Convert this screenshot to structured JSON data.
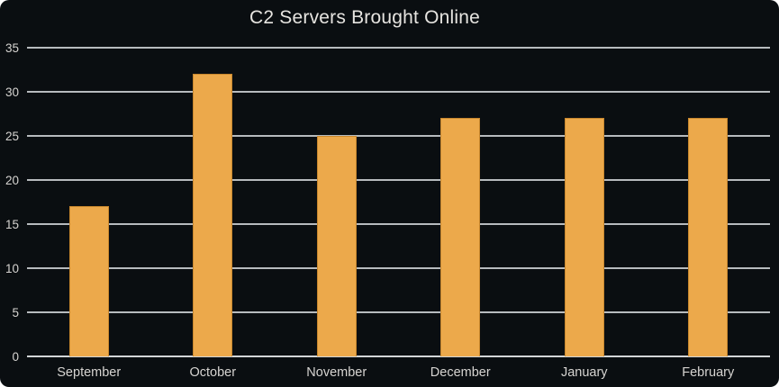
{
  "chart_data": {
    "type": "bar",
    "title": "C2 Servers Brought Online",
    "categories": [
      "September",
      "October",
      "November",
      "December",
      "January",
      "February"
    ],
    "values": [
      17,
      32,
      25,
      27,
      27,
      27
    ],
    "xlabel": "",
    "ylabel": "",
    "ylim": [
      0,
      35
    ],
    "yticks": [
      0,
      5,
      10,
      15,
      20,
      25,
      30,
      35
    ],
    "grid": true,
    "legend": false,
    "colors": {
      "background": "#0a0e11",
      "bar_fill": "#eca94b",
      "bar_border": "#c8872d",
      "gridline": "#b7bbbe",
      "axis_line": "#d2d5d7",
      "tick_label": "#d6d4d1",
      "title_text": "#e6e4e0"
    }
  }
}
